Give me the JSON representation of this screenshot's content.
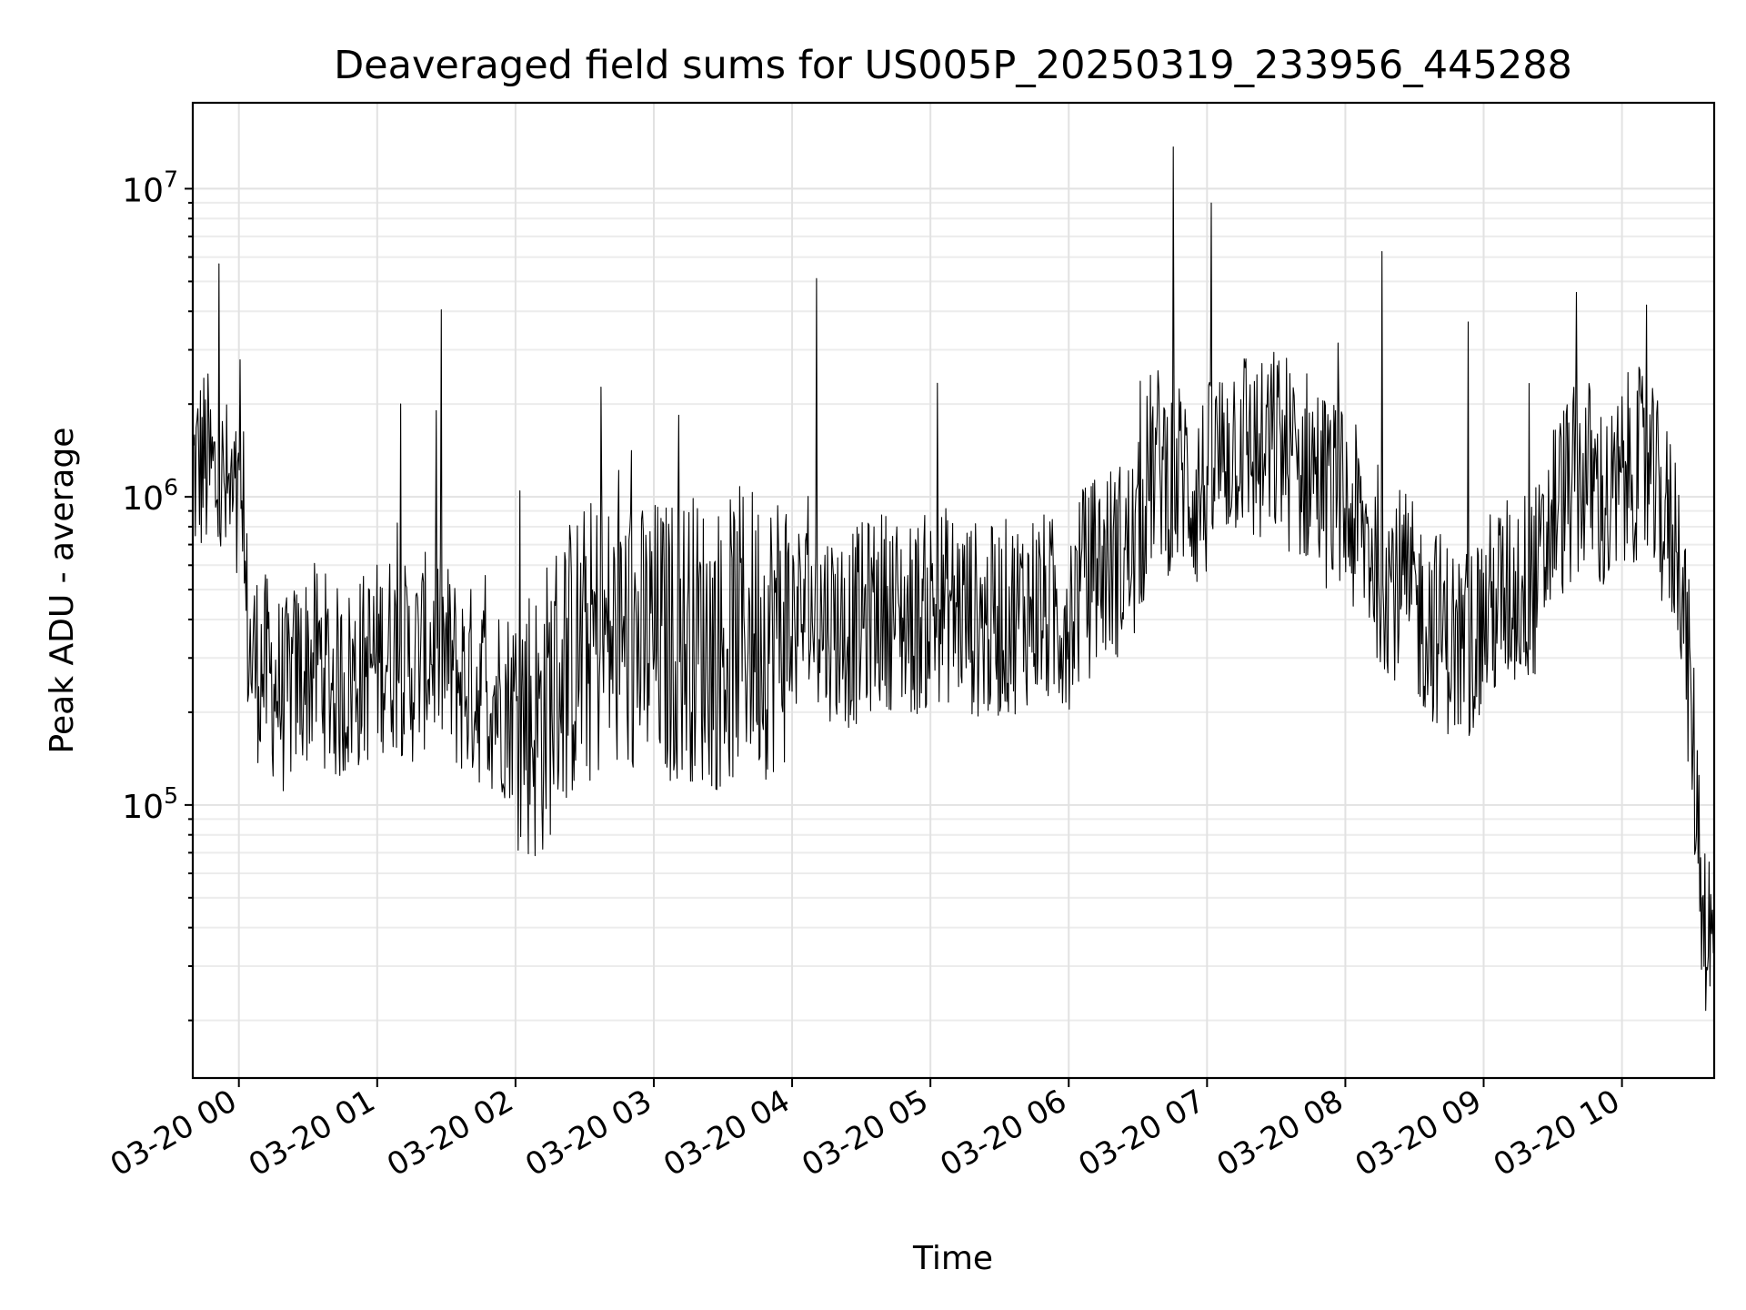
{
  "chart_data": {
    "type": "line",
    "title": "Deaveraged field sums for US005P_20250319_233956_445288",
    "xlabel": "Time",
    "ylabel": "Peak ADU - average",
    "yscale": "log",
    "xlim": [
      "2025-03-19 23:40",
      "2025-03-20 10:40"
    ],
    "ylim": [
      13000,
      19000000
    ],
    "grid": true,
    "x_tick_labels": [
      "03-20 00",
      "03-20 01",
      "03-20 02",
      "03-20 03",
      "03-20 04",
      "03-20 05",
      "03-20 06",
      "03-20 07",
      "03-20 08",
      "03-20 09",
      "03-20 10"
    ],
    "y_ticks": [
      {
        "base": "10",
        "exp": "5"
      },
      {
        "base": "10",
        "exp": "6"
      },
      {
        "base": "10",
        "exp": "7"
      }
    ],
    "series": [
      {
        "color": "#000000",
        "x": [
          "2025-03-19 23:40",
          "2025-03-19 23:45",
          "2025-03-19 23:50",
          "2025-03-19 23:55",
          "2025-03-20 00:00",
          "2025-03-20 00:05",
          "2025-03-20 00:10",
          "2025-03-20 00:15",
          "2025-03-20 00:20",
          "2025-03-20 00:25",
          "2025-03-20 00:30",
          "2025-03-20 00:35",
          "2025-03-20 00:40",
          "2025-03-20 00:45",
          "2025-03-20 00:50",
          "2025-03-20 00:55",
          "2025-03-20 01:00",
          "2025-03-20 01:05",
          "2025-03-20 01:10",
          "2025-03-20 01:15",
          "2025-03-20 01:20",
          "2025-03-20 01:25",
          "2025-03-20 01:30",
          "2025-03-20 01:35",
          "2025-03-20 01:40",
          "2025-03-20 01:45",
          "2025-03-20 01:50",
          "2025-03-20 01:55",
          "2025-03-20 02:00",
          "2025-03-20 02:05",
          "2025-03-20 02:10",
          "2025-03-20 02:15",
          "2025-03-20 02:20",
          "2025-03-20 02:25",
          "2025-03-20 02:30",
          "2025-03-20 02:35",
          "2025-03-20 02:40",
          "2025-03-20 02:45",
          "2025-03-20 02:50",
          "2025-03-20 02:55",
          "2025-03-20 03:00",
          "2025-03-20 03:05",
          "2025-03-20 03:10",
          "2025-03-20 03:15",
          "2025-03-20 03:20",
          "2025-03-20 03:25",
          "2025-03-20 03:30",
          "2025-03-20 03:35",
          "2025-03-20 03:40",
          "2025-03-20 03:45",
          "2025-03-20 03:50",
          "2025-03-20 03:55",
          "2025-03-20 04:00",
          "2025-03-20 04:05",
          "2025-03-20 04:10",
          "2025-03-20 04:15",
          "2025-03-20 04:20",
          "2025-03-20 04:25",
          "2025-03-20 04:30",
          "2025-03-20 04:35",
          "2025-03-20 04:40",
          "2025-03-20 04:45",
          "2025-03-20 04:50",
          "2025-03-20 04:55",
          "2025-03-20 05:00",
          "2025-03-20 05:05",
          "2025-03-20 05:10",
          "2025-03-20 05:15",
          "2025-03-20 05:20",
          "2025-03-20 05:25",
          "2025-03-20 05:30",
          "2025-03-20 05:35",
          "2025-03-20 05:40",
          "2025-03-20 05:45",
          "2025-03-20 05:50",
          "2025-03-20 05:55",
          "2025-03-20 06:00",
          "2025-03-20 06:05",
          "2025-03-20 06:10",
          "2025-03-20 06:15",
          "2025-03-20 06:20",
          "2025-03-20 06:25",
          "2025-03-20 06:30",
          "2025-03-20 06:35",
          "2025-03-20 06:40",
          "2025-03-20 06:45",
          "2025-03-20 06:50",
          "2025-03-20 06:55",
          "2025-03-20 07:00",
          "2025-03-20 07:05",
          "2025-03-20 07:10",
          "2025-03-20 07:15",
          "2025-03-20 07:20",
          "2025-03-20 07:25",
          "2025-03-20 07:30",
          "2025-03-20 07:35",
          "2025-03-20 07:40",
          "2025-03-20 07:45",
          "2025-03-20 07:50",
          "2025-03-20 07:55",
          "2025-03-20 08:00",
          "2025-03-20 08:05",
          "2025-03-20 08:10",
          "2025-03-20 08:15",
          "2025-03-20 08:20",
          "2025-03-20 08:25",
          "2025-03-20 08:30",
          "2025-03-20 08:35",
          "2025-03-20 08:40",
          "2025-03-20 08:45",
          "2025-03-20 08:50",
          "2025-03-20 08:55",
          "2025-03-20 09:00",
          "2025-03-20 09:05",
          "2025-03-20 09:10",
          "2025-03-20 09:15",
          "2025-03-20 09:20",
          "2025-03-20 09:25",
          "2025-03-20 09:30",
          "2025-03-20 09:35",
          "2025-03-20 09:40",
          "2025-03-20 09:45",
          "2025-03-20 09:50",
          "2025-03-20 09:55",
          "2025-03-20 10:00",
          "2025-03-20 10:05",
          "2025-03-20 10:10",
          "2025-03-20 10:15",
          "2025-03-20 10:20",
          "2025-03-20 10:25",
          "2025-03-20 10:30",
          "2025-03-20 10:35",
          "2025-03-20 10:40"
        ],
        "y": [
          1200000,
          1300000,
          1100000,
          1000000,
          800000,
          300000,
          280000,
          250000,
          220000,
          260000,
          280000,
          300000,
          250000,
          240000,
          260000,
          280000,
          300000,
          320000,
          300000,
          280000,
          310000,
          330000,
          300000,
          260000,
          250000,
          240000,
          230000,
          220000,
          210000,
          200000,
          180000,
          230000,
          280000,
          300000,
          320000,
          350000,
          340000,
          330000,
          350000,
          320000,
          340000,
          330000,
          350000,
          360000,
          340000,
          330000,
          320000,
          350000,
          380000,
          370000,
          360000,
          390000,
          400000,
          420000,
          410000,
          400000,
          380000,
          370000,
          390000,
          420000,
          440000,
          420000,
          400000,
          410000,
          430000,
          450000,
          440000,
          420000,
          400000,
          380000,
          400000,
          410000,
          430000,
          450000,
          420000,
          410000,
          430000,
          500000,
          550000,
          600000,
          620000,
          650000,
          700000,
          1200000,
          1300000,
          1100000,
          1200000,
          1000000,
          1100000,
          1300000,
          1500000,
          1600000,
          1400000,
          1300000,
          1500000,
          1400000,
          1200000,
          1300000,
          1100000,
          1000000,
          900000,
          800000,
          700000,
          600000,
          550000,
          500000,
          450000,
          400000,
          380000,
          350000,
          320000,
          350000,
          400000,
          450000,
          480000,
          500000,
          520000,
          550000,
          900000,
          1000000,
          1100000,
          1200000,
          1000000,
          900000,
          1100000,
          1300000,
          1200000,
          1000000,
          800000,
          700000,
          200000,
          50000,
          30000
        ]
      }
    ]
  }
}
